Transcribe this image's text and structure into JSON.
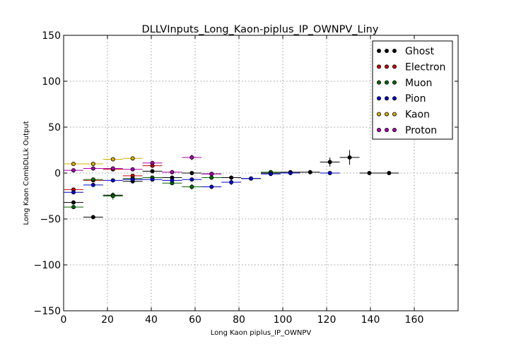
{
  "chart_data": {
    "type": "scatter",
    "title": "DLLVInputs_Long_Kaon-piplus_IP_OWNPV_Liny",
    "xlabel": "Long Kaon piplus_IP_OWNPV",
    "ylabel": "Long Kaon CombDLLk Output",
    "xlim": [
      0,
      180
    ],
    "ylim": [
      -150,
      150
    ],
    "xticks": [
      "0",
      "20",
      "40",
      "60",
      "80",
      "100",
      "120",
      "140",
      "160"
    ],
    "yticks": [
      "150",
      "100",
      "50",
      "0",
      "−50",
      "−100",
      "−150"
    ],
    "grid": true,
    "legend_position": "top-right",
    "series": [
      {
        "name": "Ghost",
        "color": "#000000",
        "points": [
          {
            "x": 4.5,
            "y": -32,
            "xerr": 4.5,
            "yerr": 2
          },
          {
            "x": 13.5,
            "y": -48,
            "xerr": 4.5,
            "yerr": 1
          },
          {
            "x": 22.5,
            "y": -24,
            "xerr": 4.5,
            "yerr": 2
          },
          {
            "x": 31.5,
            "y": -9,
            "xerr": 4.5,
            "yerr": 1
          },
          {
            "x": 40.5,
            "y": 2,
            "xerr": 4.5,
            "yerr": 1
          },
          {
            "x": 49.5,
            "y": -5,
            "xerr": 4.5,
            "yerr": 1
          },
          {
            "x": 58.5,
            "y": 0,
            "xerr": 4.5,
            "yerr": 1
          },
          {
            "x": 67.5,
            "y": -1,
            "xerr": 4.5,
            "yerr": 1
          },
          {
            "x": 76.5,
            "y": -5,
            "xerr": 4.5,
            "yerr": 1
          },
          {
            "x": 85.5,
            "y": -6,
            "xerr": 4.5,
            "yerr": 1
          },
          {
            "x": 94.5,
            "y": 0,
            "xerr": 4.5,
            "yerr": 1
          },
          {
            "x": 103.5,
            "y": 1,
            "xerr": 4.5,
            "yerr": 1
          },
          {
            "x": 112.5,
            "y": 1,
            "xerr": 4.5,
            "yerr": 1
          },
          {
            "x": 121.5,
            "y": 12,
            "xerr": 4.5,
            "yerr": 5
          },
          {
            "x": 130.5,
            "y": 17,
            "xerr": 4.5,
            "yerr": 8
          },
          {
            "x": 139.5,
            "y": 0,
            "xerr": 4.5,
            "yerr": 1
          },
          {
            "x": 148.5,
            "y": 0,
            "xerr": 4.5,
            "yerr": 1
          }
        ]
      },
      {
        "name": "Electron",
        "color": "#cc0000",
        "points": [
          {
            "x": 4.5,
            "y": -18,
            "xerr": 4.5,
            "yerr": 1
          },
          {
            "x": 13.5,
            "y": -8,
            "xerr": 4.5,
            "yerr": 1
          },
          {
            "x": 22.5,
            "y": 4,
            "xerr": 4.5,
            "yerr": 1
          },
          {
            "x": 31.5,
            "y": -3,
            "xerr": 4.5,
            "yerr": 1
          },
          {
            "x": 40.5,
            "y": 8,
            "xerr": 4.5,
            "yerr": 1
          }
        ]
      },
      {
        "name": "Muon",
        "color": "#006600",
        "points": [
          {
            "x": 4.5,
            "y": -37,
            "xerr": 4.5,
            "yerr": 2
          },
          {
            "x": 13.5,
            "y": -7,
            "xerr": 4.5,
            "yerr": 1
          },
          {
            "x": 22.5,
            "y": -25,
            "xerr": 4.5,
            "yerr": 4
          },
          {
            "x": 31.5,
            "y": -6,
            "xerr": 4.5,
            "yerr": 1
          },
          {
            "x": 40.5,
            "y": -5,
            "xerr": 4.5,
            "yerr": 1
          },
          {
            "x": 49.5,
            "y": -11,
            "xerr": 4.5,
            "yerr": 1
          },
          {
            "x": 58.5,
            "y": -15,
            "xerr": 4.5,
            "yerr": 3
          },
          {
            "x": 67.5,
            "y": -5,
            "xerr": 4.5,
            "yerr": 1
          },
          {
            "x": 94.5,
            "y": 1,
            "xerr": 4.5,
            "yerr": 1
          }
        ]
      },
      {
        "name": "Pion",
        "color": "#0000cc",
        "points": [
          {
            "x": 4.5,
            "y": -21,
            "xerr": 4.5,
            "yerr": 1
          },
          {
            "x": 13.5,
            "y": -13,
            "xerr": 4.5,
            "yerr": 1
          },
          {
            "x": 22.5,
            "y": -8,
            "xerr": 4.5,
            "yerr": 1
          },
          {
            "x": 31.5,
            "y": -7,
            "xerr": 4.5,
            "yerr": 1
          },
          {
            "x": 40.5,
            "y": -7,
            "xerr": 4.5,
            "yerr": 1
          },
          {
            "x": 49.5,
            "y": -8,
            "xerr": 4.5,
            "yerr": 1
          },
          {
            "x": 58.5,
            "y": -7,
            "xerr": 4.5,
            "yerr": 1
          },
          {
            "x": 67.5,
            "y": -15,
            "xerr": 4.5,
            "yerr": 1
          },
          {
            "x": 76.5,
            "y": -10,
            "xerr": 4.5,
            "yerr": 3
          },
          {
            "x": 85.5,
            "y": -6,
            "xerr": 4.5,
            "yerr": 1
          },
          {
            "x": 94.5,
            "y": -1,
            "xerr": 4.5,
            "yerr": 1
          },
          {
            "x": 103.5,
            "y": 0,
            "xerr": 4.5,
            "yerr": 1
          },
          {
            "x": 121.5,
            "y": 0,
            "xerr": 4.5,
            "yerr": 1
          }
        ]
      },
      {
        "name": "Kaon",
        "color": "#d4b000",
        "points": [
          {
            "x": 4.5,
            "y": 10,
            "xerr": 4.5,
            "yerr": 1
          },
          {
            "x": 13.5,
            "y": 10,
            "xerr": 4.5,
            "yerr": 1
          },
          {
            "x": 22.5,
            "y": 15,
            "xerr": 4.5,
            "yerr": 1
          },
          {
            "x": 31.5,
            "y": 16,
            "xerr": 4.5,
            "yerr": 1
          }
        ]
      },
      {
        "name": "Proton",
        "color": "#aa00aa",
        "points": [
          {
            "x": 4.5,
            "y": 3,
            "xerr": 4.5,
            "yerr": 1
          },
          {
            "x": 13.5,
            "y": 5,
            "xerr": 4.5,
            "yerr": 1
          },
          {
            "x": 22.5,
            "y": 5,
            "xerr": 4.5,
            "yerr": 1
          },
          {
            "x": 31.5,
            "y": 4,
            "xerr": 4.5,
            "yerr": 1
          },
          {
            "x": 40.5,
            "y": 11,
            "xerr": 4.5,
            "yerr": 1
          },
          {
            "x": 49.5,
            "y": 1,
            "xerr": 4.5,
            "yerr": 1
          },
          {
            "x": 58.5,
            "y": 17,
            "xerr": 4.5,
            "yerr": 3
          },
          {
            "x": 67.5,
            "y": -1,
            "xerr": 4.5,
            "yerr": 1
          }
        ]
      }
    ]
  }
}
